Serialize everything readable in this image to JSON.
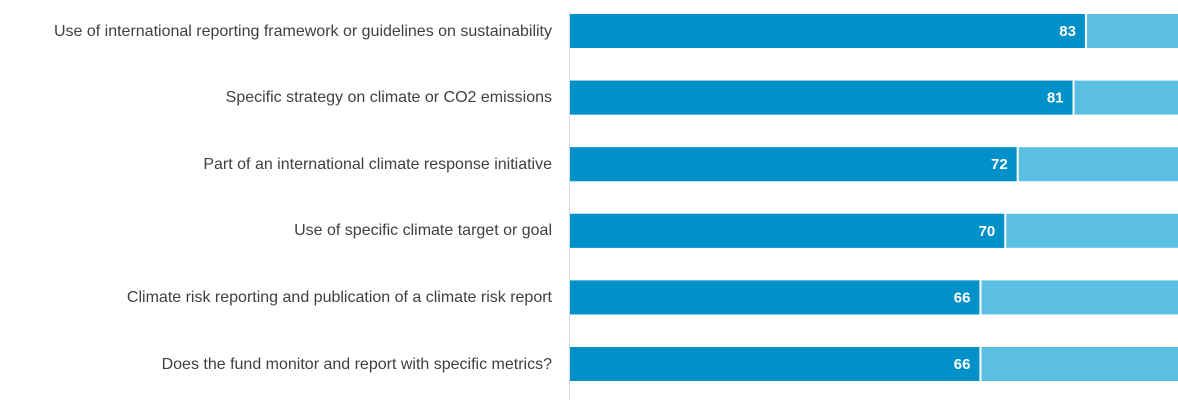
{
  "chart_data": {
    "type": "bar",
    "orientation": "horizontal",
    "categories": [
      "Use of international reporting framework or guidelines on sustainability",
      "Specific strategy on climate or CO2 emissions",
      "Part of an international climate response initiative",
      "Use of specific climate target or goal",
      "Climate risk reporting and publication of  a climate risk report",
      "Does the fund monitor and report with specific metrics?"
    ],
    "values": [
      83,
      81,
      72,
      70,
      66,
      66
    ],
    "color": "#0091c9",
    "track_color": "#5bbfe3",
    "xlim": [
      0,
      98
    ]
  }
}
